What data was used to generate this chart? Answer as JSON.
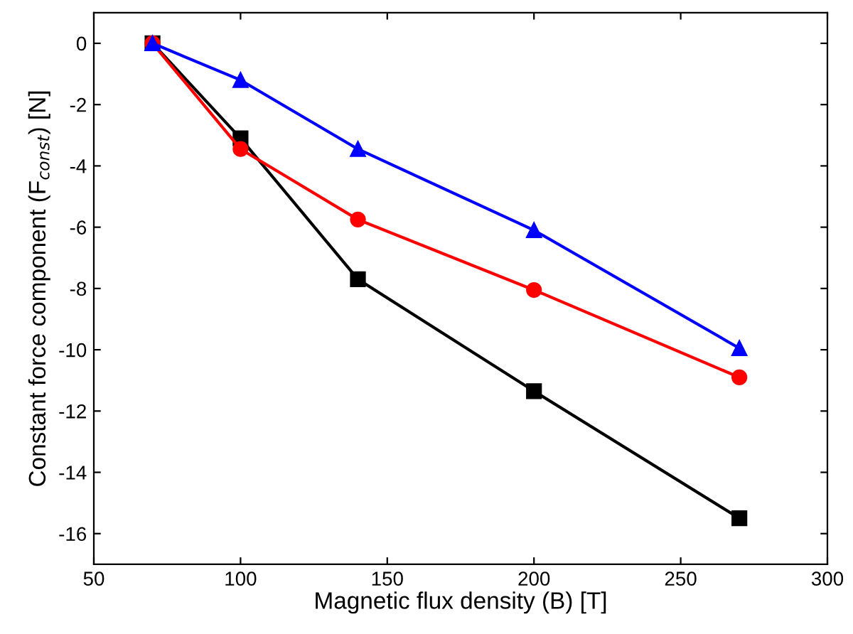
{
  "chart_data": {
    "type": "line",
    "xlabel": "Magnetic flux density (B) [T]",
    "ylabel": "Constant force component (F$_{const}$) [N]",
    "x": [
      70,
      100,
      140,
      200,
      270
    ],
    "series": [
      {
        "color": "#000000",
        "marker": "square",
        "values": [
          0,
          -3.1,
          -7.7,
          -11.35,
          -15.5
        ]
      },
      {
        "color": "#ff0000",
        "marker": "circle",
        "values": [
          0,
          -3.45,
          -5.75,
          -8.05,
          -10.9
        ]
      },
      {
        "color": "#0000ff",
        "marker": "triangle",
        "values": [
          0,
          -1.2,
          -3.45,
          -6.1,
          -9.95
        ]
      }
    ],
    "xlim": [
      50,
      300
    ],
    "xticks": [
      50,
      100,
      150,
      200,
      250,
      300
    ],
    "ylim": [
      -17,
      1
    ],
    "yticks": [
      -16,
      -14,
      -12,
      -10,
      -8,
      -6,
      -4,
      -2,
      0
    ],
    "grid": false,
    "line_style": "solid"
  }
}
